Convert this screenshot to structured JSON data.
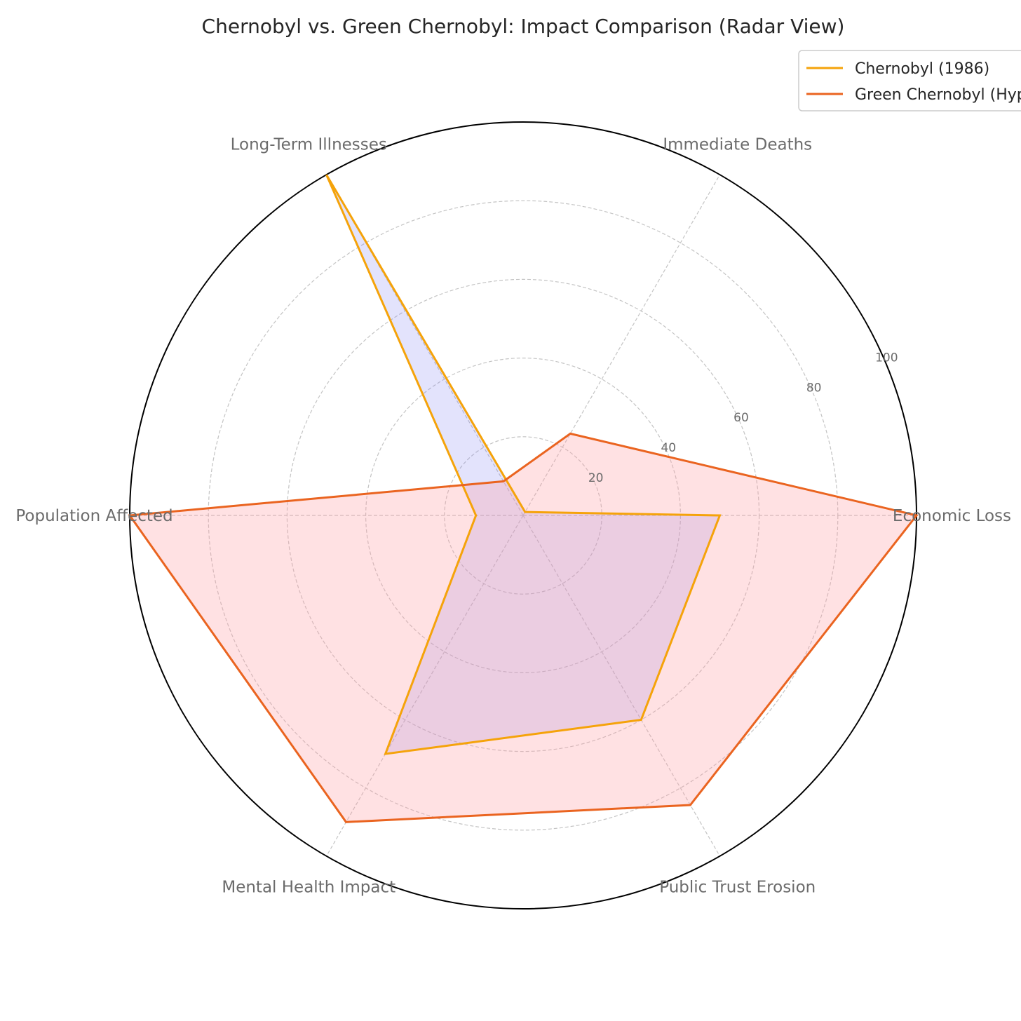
{
  "chart_data": {
    "type": "radar",
    "title": "Chernobyl vs. Green Chernobyl: Impact Comparison (Radar View)",
    "categories": [
      "Economic Loss",
      "Immediate Deaths",
      "Long-Term Illnesses",
      "Population Affected",
      "Mental Health Impact",
      "Public Trust Erosion"
    ],
    "rlim": [
      0,
      100
    ],
    "rticks": [
      "20",
      "40",
      "60",
      "80",
      "100"
    ],
    "grid": true,
    "legend_position": "top-right",
    "series": [
      {
        "name": "Chernobyl (1986)",
        "values": [
          50,
          1,
          100,
          12,
          70,
          60
        ],
        "line_color": "#f5a30a",
        "fill_color": "#8080f0"
      },
      {
        "name": "Green Chernobyl (Hypothetical)",
        "values": [
          100,
          24,
          10,
          100,
          90,
          85
        ],
        "line_color": "#ea6420",
        "fill_color": "#ff9aa2"
      }
    ]
  }
}
